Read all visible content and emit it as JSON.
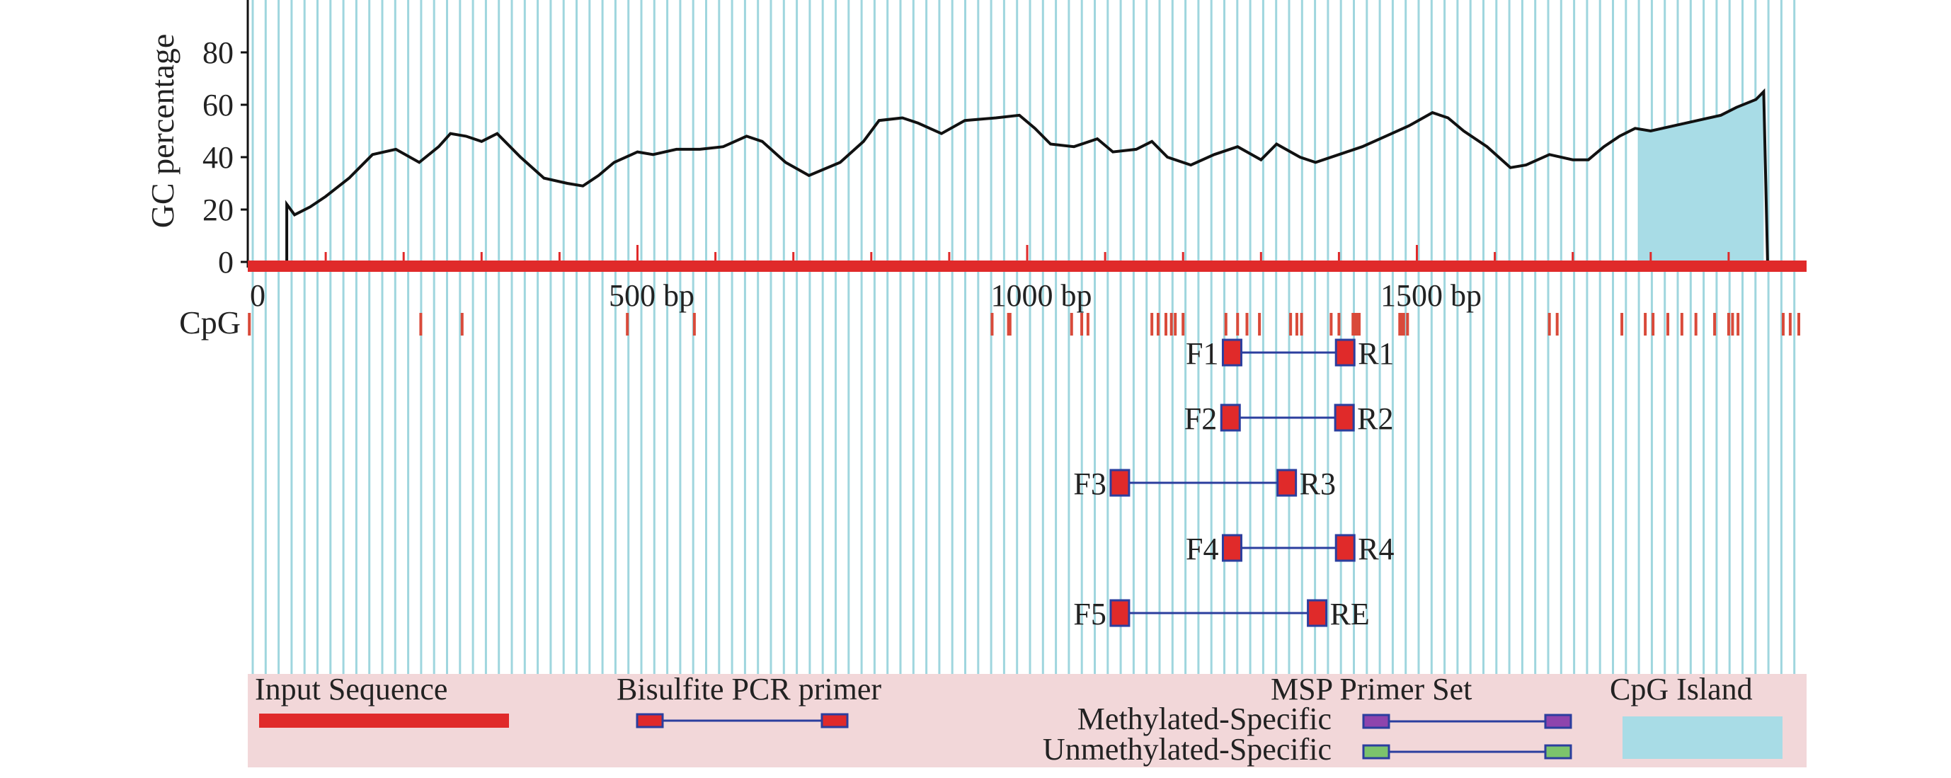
{
  "chart_data": {
    "type": "line",
    "ylabel": "GC percentage",
    "xlim": [
      0,
      2000
    ],
    "ylim": [
      0,
      100
    ],
    "y_ticks": [
      0,
      20,
      40,
      60,
      80
    ],
    "x_tick_labels": [
      {
        "value": 0,
        "label": "0"
      },
      {
        "value": 500,
        "label": "500 bp"
      },
      {
        "value": 1000,
        "label": "1000 bp"
      },
      {
        "value": 1500,
        "label": "1500 bp"
      }
    ],
    "input_sequence_end": 1950,
    "gc_series": {
      "x": [
        50,
        60,
        80,
        100,
        130,
        160,
        190,
        220,
        245,
        260,
        280,
        300,
        320,
        350,
        380,
        410,
        430,
        450,
        470,
        500,
        520,
        550,
        580,
        610,
        640,
        660,
        690,
        720,
        760,
        790,
        810,
        840,
        860,
        890,
        920,
        960,
        990,
        1010,
        1030,
        1060,
        1090,
        1110,
        1140,
        1160,
        1180,
        1210,
        1240,
        1270,
        1300,
        1320,
        1350,
        1370,
        1400,
        1430,
        1460,
        1490,
        1520,
        1540,
        1560,
        1590,
        1620,
        1640,
        1670,
        1700,
        1720,
        1740,
        1760,
        1780,
        1800,
        1830,
        1860,
        1890,
        1910,
        1935,
        1945
      ],
      "y": [
        22,
        18,
        21,
        25,
        32,
        41,
        43,
        38,
        44,
        49,
        48,
        46,
        49,
        40,
        32,
        30,
        29,
        33,
        38,
        42,
        41,
        43,
        43,
        44,
        48,
        46,
        38,
        33,
        38,
        46,
        54,
        55,
        53,
        49,
        54,
        55,
        56,
        51,
        45,
        44,
        47,
        42,
        43,
        46,
        40,
        37,
        41,
        44,
        39,
        45,
        40,
        38,
        41,
        44,
        48,
        52,
        57,
        55,
        50,
        44,
        36,
        37,
        41,
        39,
        39,
        44,
        48,
        51,
        50,
        52,
        54,
        56,
        59,
        62,
        65
      ]
    },
    "cpg_island": {
      "start": 1785,
      "end": 1945
    },
    "cpg_sites": [
      2,
      222,
      275,
      487,
      573,
      955,
      976,
      978,
      1057,
      1070,
      1078,
      1160,
      1168,
      1178,
      1185,
      1190,
      1200,
      1255,
      1270,
      1282,
      1298,
      1338,
      1346,
      1352,
      1390,
      1400,
      1418,
      1420,
      1423,
      1426,
      1478,
      1480,
      1483,
      1488,
      1670,
      1680,
      1763,
      1793,
      1803,
      1822,
      1840,
      1858,
      1882,
      1900,
      1905,
      1912,
      1970,
      1979,
      1990
    ],
    "primers": [
      {
        "forward": "F1",
        "reverse": "R1",
        "start": 1262,
        "end": 1408
      },
      {
        "forward": "F2",
        "reverse": "R2",
        "start": 1260,
        "end": 1407
      },
      {
        "forward": "F3",
        "reverse": "R3",
        "start": 1118,
        "end": 1333
      },
      {
        "forward": "F4",
        "reverse": "R4",
        "start": 1262,
        "end": 1408
      },
      {
        "forward": "F5",
        "reverse": "RE",
        "start": 1118,
        "end": 1372
      }
    ],
    "y_axis_label_bottom": "CpG"
  },
  "legend": {
    "input_sequence": "Input Sequence",
    "bisulfite_primer": "Bisulfite PCR primer",
    "msp_title": "MSP Primer Set",
    "methylated": "Methylated-Specific",
    "unmethylated": "Unmethylated-Specific",
    "cpg_island": "CpG Island"
  },
  "colors": {
    "sequence_red": "#e02a2a",
    "primer_red": "#e02a2a",
    "primer_border": "#2b3e9e",
    "primer_line": "#2b3e9e",
    "cpg_island_fill": "#a8dce6",
    "grid_line": "#9fd6de",
    "cpg_tick": "#d94a3a",
    "legend_bg": "#f2d7d9",
    "methylated_purple": "#8e44ad",
    "unmethylated_green": "#7cc36c"
  }
}
